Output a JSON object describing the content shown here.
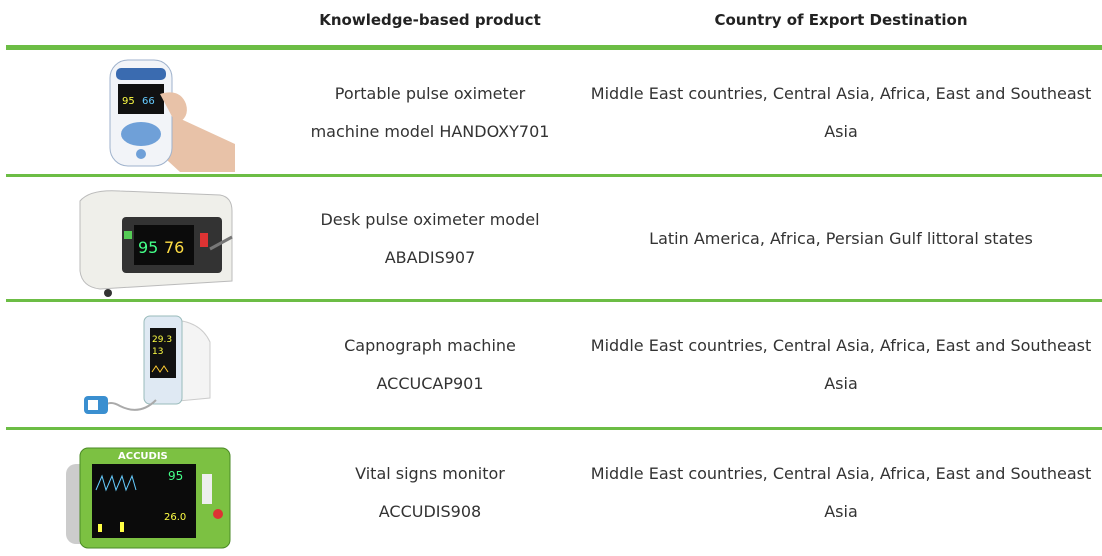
{
  "header": {
    "product": "Knowledge-based product",
    "destination": "Country of Export Destination"
  },
  "table": {
    "rows": [
      {
        "product": [
          "Portable pulse oximeter",
          "machine model HANDOXY701"
        ],
        "destination": [
          "Middle East countries, Central Asia, Africa, East and Southeast",
          "Asia"
        ]
      },
      {
        "product": [
          "Desk pulse oximeter model",
          "ABADIS907"
        ],
        "destination": [
          "Latin America, Africa, Persian Gulf littoral states"
        ]
      },
      {
        "product": [
          "Capnograph machine",
          "ACCUCAP901"
        ],
        "destination": [
          "Middle East countries, Central Asia, Africa, East and Southeast",
          "Asia"
        ]
      },
      {
        "product": [
          "Vital signs monitor",
          "ACCUDIS908"
        ],
        "destination": [
          "Middle East countries, Central Asia, Africa, East and Southeast",
          "Asia"
        ]
      }
    ]
  }
}
